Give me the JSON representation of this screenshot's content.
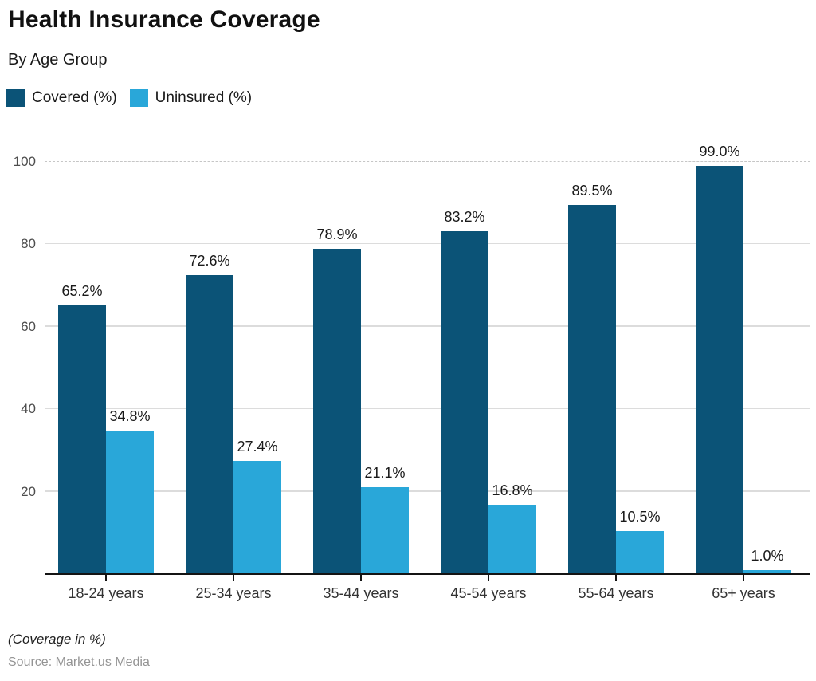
{
  "title": "Health Insurance Coverage",
  "subtitle": "By Age Group",
  "legend": [
    {
      "label": "Covered (%)",
      "color": "#0B5377"
    },
    {
      "label": "Uninsured (%)",
      "color": "#29A7D9"
    }
  ],
  "footnote": "(Coverage in %)",
  "source": "Source: Market.us Media",
  "colors": {
    "covered": "#0B5377",
    "uninsured": "#29A7D9",
    "axis": "#141414",
    "gridline": "#dcdcdc"
  },
  "chart_data": {
    "type": "bar",
    "title": "Health Insurance Coverage",
    "subtitle": "By Age Group",
    "categories": [
      "18-24 years",
      "25-34 years",
      "35-44 years",
      "45-54 years",
      "55-64 years",
      "65+ years"
    ],
    "series": [
      {
        "name": "Covered (%)",
        "color": "#0B5377",
        "values": [
          65.2,
          72.6,
          78.9,
          83.2,
          89.5,
          99.0
        ]
      },
      {
        "name": "Uninsured (%)",
        "color": "#29A7D9",
        "values": [
          34.8,
          27.4,
          21.1,
          16.8,
          10.5,
          1.0
        ]
      }
    ],
    "xlabel": "",
    "ylabel": "",
    "ylim": [
      0,
      100
    ],
    "y_ticks": [
      20,
      40,
      60,
      80,
      100
    ],
    "value_label_format": "one_decimal_percent",
    "grid": true,
    "grid_top_line_style": "dashed",
    "legend_position": "top-left",
    "note": "(Coverage in %)",
    "source": "Source: Market.us Media"
  }
}
